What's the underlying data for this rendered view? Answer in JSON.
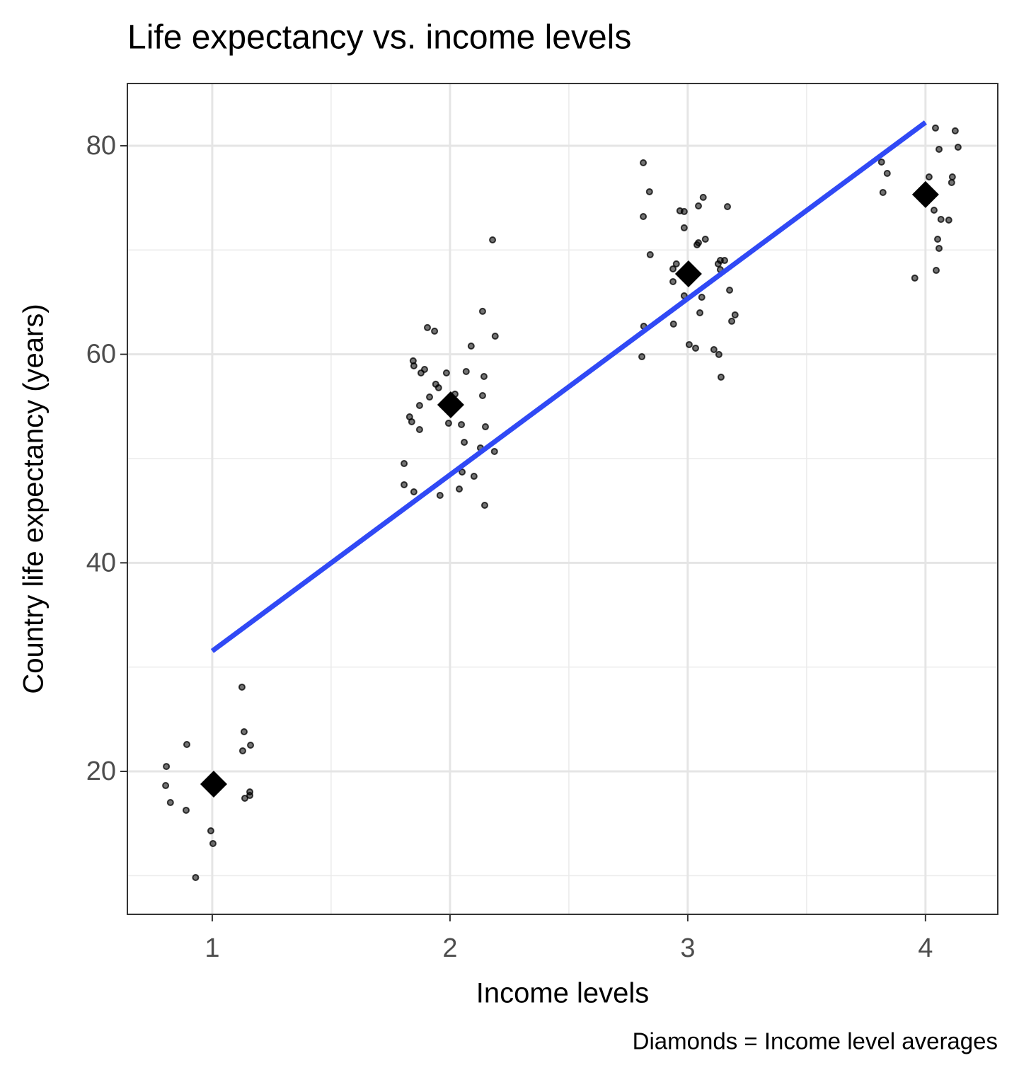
{
  "chart_data": {
    "type": "scatter",
    "title": "Life expectancy vs. income levels",
    "x_label": "Income levels",
    "y_label": "Country life expectancy (years)",
    "caption": "Diamonds = Income level averages",
    "xlim": [
      0.643,
      4.304
    ],
    "ylim": [
      6.29,
      85.97
    ],
    "xticks": [
      1,
      2,
      3,
      4
    ],
    "yticks": [
      20,
      40,
      60,
      80
    ],
    "x_minor_breaks": [
      1.5,
      2.5,
      3.5
    ],
    "y_minor_breaks": [
      10,
      30,
      50,
      70
    ],
    "grid": true,
    "series": [
      {
        "mode": "points",
        "color": "#000000",
        "x": [
          0.807,
          0.804,
          0.824,
          0.89,
          0.893,
          0.994,
          1.003,
          0.93,
          1.125,
          1.134,
          1.128,
          1.161,
          1.137,
          1.158,
          1.158,
          1.845,
          1.848,
          1.878,
          1.893,
          1.905,
          1.935,
          1.985,
          2.068,
          2.137,
          2.089,
          2.19,
          2.179,
          2.143,
          2.137,
          1.83,
          1.839,
          1.872,
          1.914,
          1.872,
          1.94,
          1.952,
          1.994,
          2.048,
          2.021,
          2.06,
          2.149,
          2.128,
          2.187,
          1.807,
          2.051,
          2.101,
          1.807,
          1.848,
          1.958,
          2.039,
          2.146,
          2.813,
          2.839,
          2.813,
          2.967,
          2.985,
          3.065,
          3.045,
          3.167,
          2.985,
          3.074,
          3.045,
          3.039,
          2.842,
          3.137,
          3.155,
          3.128,
          2.952,
          2.938,
          3.137,
          2.938,
          3.176,
          2.985,
          3.059,
          3.051,
          3.199,
          3.185,
          2.94,
          2.815,
          3.006,
          3.033,
          3.11,
          3.131,
          2.807,
          3.14,
          4.125,
          4.042,
          4.057,
          4.137,
          3.815,
          3.839,
          4.015,
          4.113,
          4.11,
          3.821,
          4.036,
          4.065,
          4.098,
          4.051,
          4.057,
          4.045,
          3.955
        ],
        "values": [
          20.47,
          18.64,
          17.01,
          16.27,
          22.58,
          14.3,
          13.08,
          9.82,
          28.08,
          23.8,
          21.97,
          22.51,
          17.42,
          17.69,
          18.03,
          59.37,
          58.89,
          58.21,
          58.55,
          62.56,
          62.22,
          58.21,
          58.35,
          64.12,
          60.79,
          61.74,
          70.97,
          57.87,
          56.04,
          54.0,
          53.53,
          55.09,
          55.9,
          52.78,
          57.13,
          56.79,
          53.39,
          53.26,
          56.18,
          51.56,
          53.05,
          51.02,
          50.68,
          49.52,
          48.71,
          48.3,
          47.49,
          46.81,
          46.47,
          47.08,
          45.52,
          78.37,
          75.59,
          73.21,
          73.76,
          73.69,
          75.05,
          74.23,
          74.16,
          72.13,
          71.04,
          70.7,
          70.5,
          69.55,
          69.0,
          69.0,
          68.67,
          68.67,
          68.19,
          68.12,
          66.97,
          66.15,
          65.61,
          65.47,
          63.98,
          63.78,
          63.17,
          62.9,
          62.69,
          60.93,
          60.59,
          60.45,
          59.98,
          59.77,
          57.81,
          81.43,
          81.7,
          79.66,
          79.86,
          78.44,
          77.35,
          77.01,
          77.01,
          76.47,
          75.52,
          73.82,
          72.94,
          72.87,
          71.04,
          70.16,
          68.05,
          67.31
        ]
      },
      {
        "mode": "line",
        "color": "#3049f5",
        "x": [
          1,
          4
        ],
        "values": [
          31.54,
          82.24
        ]
      },
      {
        "mode": "diamonds",
        "color": "#000000",
        "x": [
          1.006,
          2.003,
          3.003,
          4.0
        ],
        "values": [
          18.78,
          55.16,
          67.71,
          75.32
        ]
      }
    ]
  }
}
